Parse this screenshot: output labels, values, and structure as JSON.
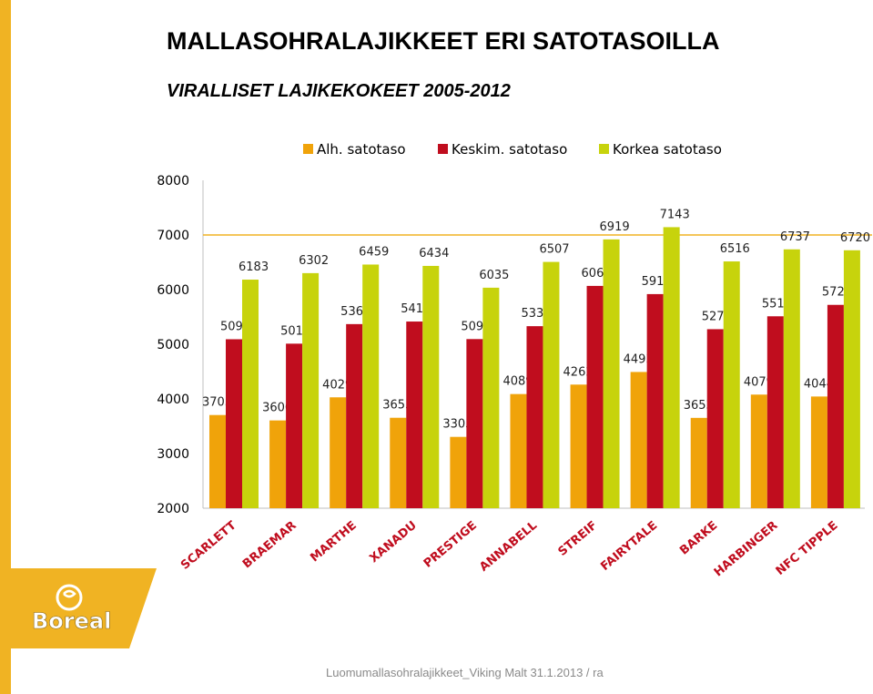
{
  "header": {
    "title": "MALLASOHRALAJIKKEET ERI SATOTASOILLA",
    "subtitle": "VIRALLISET LAJIKEKOKEET 2005-2012"
  },
  "footer": {
    "text": "Luomumallasohralajikkeet_Viking Malt 31.1.2013 / ra"
  },
  "brand": {
    "logo_text": "Boreal",
    "color": "#f0b323"
  },
  "chart_data": {
    "type": "bar",
    "categories": [
      "SCARLETT",
      "BRAEMAR",
      "MARTHE",
      "XANADU",
      "PRESTIGE",
      "ANNABELL",
      "STREIF",
      "FAIRYTALE",
      "BARKE",
      "HARBINGER",
      "NFC TIPPLE"
    ],
    "series": [
      {
        "name": "Alh. satotaso",
        "color": "#f0a30a",
        "values": [
          3705,
          3606,
          4029,
          3655,
          3305,
          4089,
          4262,
          4493,
          3653,
          4079,
          4044
        ]
      },
      {
        "name": "Keskim. satotaso",
        "color": "#c00d1e",
        "values": [
          5092,
          5011,
          5369,
          5416,
          5095,
          5331,
          6068,
          5918,
          5276,
          5512,
          5721
        ]
      },
      {
        "name": "Korkea satotaso",
        "color": "#c7d30c",
        "values": [
          6183,
          6302,
          6459,
          6434,
          6035,
          6507,
          6919,
          7143,
          6516,
          6737,
          6720
        ]
      }
    ],
    "ylim": [
      2000,
      8000
    ],
    "yticks": [
      2000,
      3000,
      4000,
      5000,
      6000,
      7000,
      8000
    ],
    "reference_line": {
      "value": 7000,
      "color": "#f0b323"
    },
    "legend_position": "top",
    "grid": false
  }
}
